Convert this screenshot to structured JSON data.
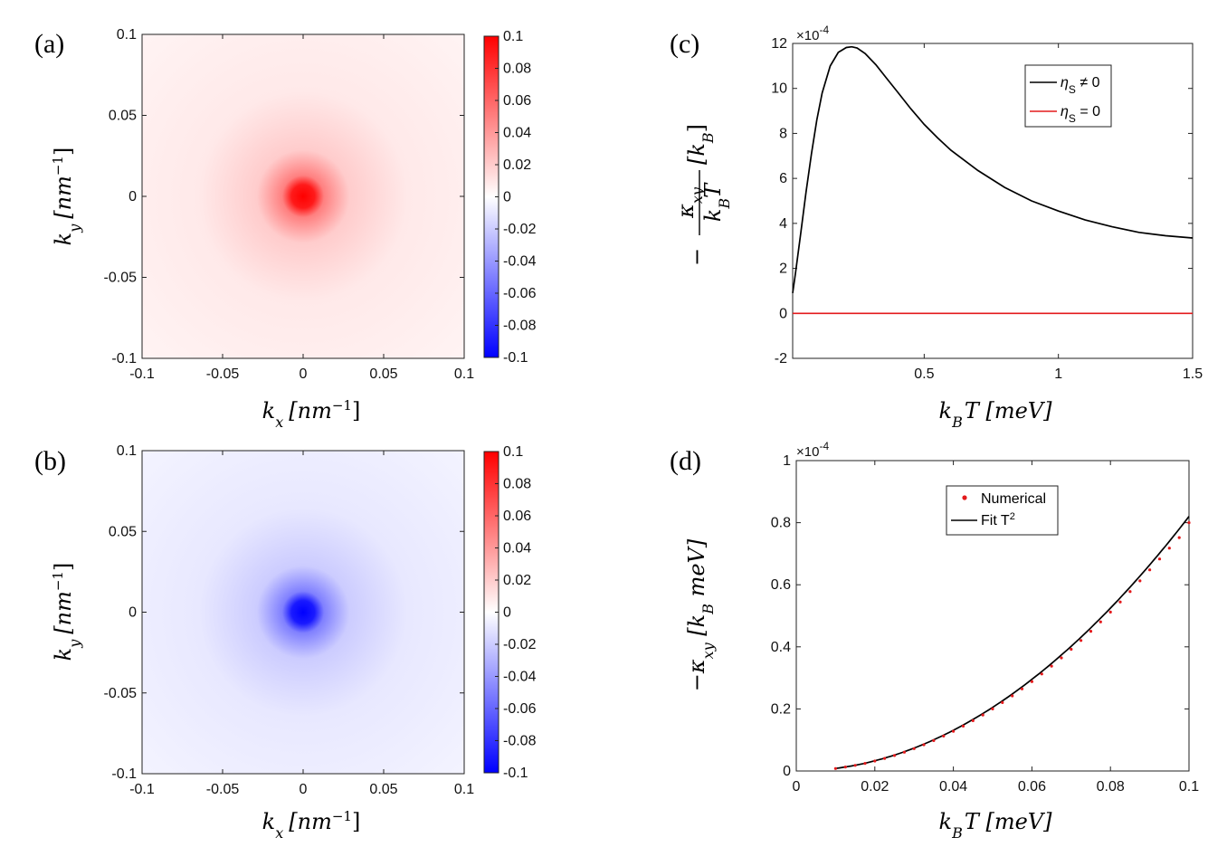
{
  "panels": {
    "a": {
      "label": "(a)",
      "xlabel_var": "k",
      "xlabel_sub": "x",
      "xlabel_unit_pre": "[nm",
      "xlabel_unit_exp": "−1",
      "xlabel_unit_post": "]",
      "ylabel_var": "k",
      "ylabel_sub": "y"
    },
    "b": {
      "label": "(b)",
      "xlabel_var": "k",
      "xlabel_sub": "x",
      "xlabel_unit_pre": "[nm",
      "xlabel_unit_exp": "−1",
      "xlabel_unit_post": "]",
      "ylabel_var": "k",
      "ylabel_sub": "y"
    },
    "c": {
      "label": "(c)",
      "sci_mult": "×10",
      "sci_exp": "-4",
      "xlabel_pre": "k",
      "xlabel_sub": "B",
      "xlabel_post": "T [meV]",
      "ylabel_minus": "−",
      "ylabel_num": "κ",
      "ylabel_num_sub": "xy",
      "ylabel_den": "k",
      "ylabel_den_sub": "B",
      "ylabel_den_post": "T",
      "ylabel_tail": "[k",
      "ylabel_tail_sub": "B",
      "ylabel_tail_end": "]"
    },
    "d": {
      "label": "(d)",
      "sci_mult": "×10",
      "sci_exp": "-4",
      "xlabel_pre": "k",
      "xlabel_sub": "B",
      "xlabel_post": "T [meV]",
      "ylabel_pre": "−κ",
      "ylabel_sub": "xy",
      "ylabel_post": " [k",
      "ylabel_sub2": "B",
      "ylabel_end": " meV]"
    }
  },
  "legend_c": [
    {
      "sym": "η",
      "sub": "S",
      "rest": " ≠ 0",
      "color": "#000000"
    },
    {
      "sym": "η",
      "sub": "S",
      "rest": " = 0",
      "color": "#e31a1c"
    }
  ],
  "legend_d": [
    {
      "text": "Numerical",
      "color": "#e31a1c",
      "marker": "dot"
    },
    {
      "text": "Fit T",
      "sup": "2",
      "color": "#000000",
      "marker": "line"
    }
  ],
  "chart_data": [
    {
      "id": "a",
      "type": "heatmap",
      "title": "",
      "xlabel": "k_x [nm^-1]",
      "ylabel": "k_y [nm^-1]",
      "xlim": [
        -0.1,
        0.1
      ],
      "ylim": [
        -0.1,
        0.1
      ],
      "xticks": [
        "-0.1",
        "-0.05",
        "0",
        "0.05",
        "0.1"
      ],
      "yticks": [
        "-0.1",
        "-0.05",
        "0",
        "0.05",
        "0.1"
      ],
      "clim": [
        -0.1,
        0.1
      ],
      "colorbar_ticks": [
        "-0.1",
        "-0.08",
        "-0.06",
        "-0.04",
        "-0.02",
        "0",
        "0.02",
        "0.04",
        "0.06",
        "0.08",
        "0.1"
      ],
      "colormap": [
        "#0000ff",
        "#ffffff",
        "#ff0000"
      ],
      "peak_center": [
        0,
        0
      ],
      "peak_value": 0.1,
      "background_value": 0.005
    },
    {
      "id": "b",
      "type": "heatmap",
      "title": "",
      "xlabel": "k_x [nm^-1]",
      "ylabel": "k_y [nm^-1]",
      "xlim": [
        -0.1,
        0.1
      ],
      "ylim": [
        -0.1,
        0.1
      ],
      "xticks": [
        "-0.1",
        "-0.05",
        "0",
        "0.05",
        "0.1"
      ],
      "yticks": [
        "-0.1",
        "-0.05",
        "0",
        "0.05",
        "0.1"
      ],
      "clim": [
        -0.1,
        0.1
      ],
      "colorbar_ticks": [
        "-0.1",
        "-0.08",
        "-0.06",
        "-0.04",
        "-0.02",
        "0",
        "0.02",
        "0.04",
        "0.06",
        "0.08",
        "0.1"
      ],
      "colormap": [
        "#0000ff",
        "#ffffff",
        "#ff0000"
      ],
      "peak_center": [
        0,
        0
      ],
      "peak_value": -0.1,
      "background_value": -0.005
    },
    {
      "id": "c",
      "type": "line",
      "xlabel": "k_B T [meV]",
      "ylabel": "-kappa_xy/(k_B T) [k_B]",
      "xlim": [
        0.01,
        1.5
      ],
      "ylim": [
        -2,
        12
      ],
      "y_scale_exponent": -4,
      "xticks": [
        "0.5",
        "1",
        "1.5"
      ],
      "yticks": [
        "-2",
        "0",
        "2",
        "4",
        "6",
        "8",
        "10",
        "12"
      ],
      "legend_position": "top-right",
      "series": [
        {
          "name": "eta_S != 0",
          "color": "#000000",
          "x": [
            0.01,
            0.02,
            0.04,
            0.06,
            0.08,
            0.1,
            0.12,
            0.15,
            0.18,
            0.21,
            0.23,
            0.25,
            0.28,
            0.32,
            0.36,
            0.4,
            0.45,
            0.5,
            0.55,
            0.6,
            0.7,
            0.8,
            0.9,
            1.0,
            1.1,
            1.2,
            1.3,
            1.4,
            1.5
          ],
          "y": [
            0.9,
            1.75,
            3.55,
            5.4,
            7.1,
            8.6,
            9.8,
            11.0,
            11.6,
            11.82,
            11.85,
            11.8,
            11.55,
            11.05,
            10.45,
            9.85,
            9.1,
            8.4,
            7.8,
            7.25,
            6.35,
            5.6,
            5.0,
            4.55,
            4.15,
            3.85,
            3.6,
            3.45,
            3.35
          ]
        },
        {
          "name": "eta_S = 0",
          "color": "#e31a1c",
          "x": [
            0.01,
            1.5
          ],
          "y": [
            0,
            0
          ]
        }
      ]
    },
    {
      "id": "d",
      "type": "line",
      "xlabel": "k_B T [meV]",
      "ylabel": "-kappa_xy [k_B meV]",
      "xlim": [
        0,
        0.1
      ],
      "ylim": [
        0,
        1
      ],
      "y_scale_exponent": -4,
      "xticks": [
        "0",
        "0.02",
        "0.04",
        "0.06",
        "0.08",
        "0.1"
      ],
      "yticks": [
        "0",
        "0.2",
        "0.4",
        "0.6",
        "0.8",
        "1"
      ],
      "legend_position": "top-center",
      "series": [
        {
          "name": "Numerical",
          "color": "#e31a1c",
          "style": "dots",
          "x": [
            0.01,
            0.0125,
            0.015,
            0.0175,
            0.02,
            0.0225,
            0.025,
            0.0275,
            0.03,
            0.0325,
            0.035,
            0.0375,
            0.04,
            0.0425,
            0.045,
            0.0475,
            0.05,
            0.0525,
            0.055,
            0.0575,
            0.06,
            0.0625,
            0.065,
            0.0675,
            0.07,
            0.0725,
            0.075,
            0.0775,
            0.08,
            0.0825,
            0.085,
            0.0875,
            0.09,
            0.0925,
            0.095,
            0.0975,
            0.1
          ],
          "y": [
            0.008,
            0.0128,
            0.018,
            0.0245,
            0.032,
            0.0405,
            0.05,
            0.0605,
            0.072,
            0.0845,
            0.098,
            0.1125,
            0.128,
            0.1445,
            0.162,
            0.1805,
            0.2,
            0.2205,
            0.242,
            0.2645,
            0.288,
            0.3125,
            0.338,
            0.3645,
            0.392,
            0.4205,
            0.45,
            0.4805,
            0.512,
            0.5445,
            0.578,
            0.6125,
            0.648,
            0.683,
            0.718,
            0.752,
            0.8
          ]
        },
        {
          "name": "Fit T^2",
          "color": "#000000",
          "style": "line",
          "coef": 82
        }
      ]
    }
  ]
}
